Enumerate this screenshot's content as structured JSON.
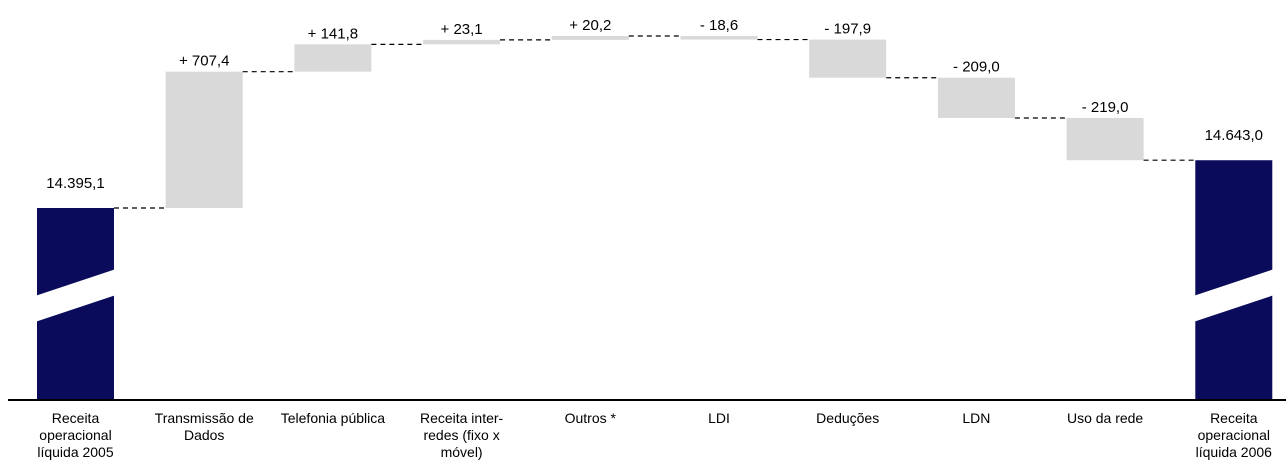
{
  "chart_data": {
    "type": "waterfall",
    "start": {
      "category": [
        "Receita",
        "operacional",
        "líquida 2005"
      ],
      "value": 14395.1,
      "label": "14.395,1"
    },
    "steps": [
      {
        "category": [
          "Transmissão de",
          "Dados"
        ],
        "value": 707.4,
        "label": "+ 707,4"
      },
      {
        "category": [
          "Telefonia pública"
        ],
        "value": 141.8,
        "label": "+ 141,8"
      },
      {
        "category": [
          "Receita inter-",
          "redes (fixo x",
          "móvel)"
        ],
        "value": 23.1,
        "label": "+ 23,1"
      },
      {
        "category": [
          "Outros *"
        ],
        "value": 20.2,
        "label": "+ 20,2"
      },
      {
        "category": [
          "LDI"
        ],
        "value": -18.6,
        "label": "- 18,6"
      },
      {
        "category": [
          "Deduções"
        ],
        "value": -197.9,
        "label": "- 197,9"
      },
      {
        "category": [
          "LDN"
        ],
        "value": -209.0,
        "label": "- 209,0"
      },
      {
        "category": [
          "Uso da rede"
        ],
        "value": -219.0,
        "label": "- 219,0"
      }
    ],
    "end": {
      "category": [
        "Receita",
        "operacional",
        "líquida 2006"
      ],
      "value": 14643.0,
      "label": "14.643,0"
    },
    "axis_break": true,
    "colors": {
      "total_bar": "#0b0b5c",
      "step_bar": "#d9d9d9",
      "connector": "#000000"
    }
  }
}
